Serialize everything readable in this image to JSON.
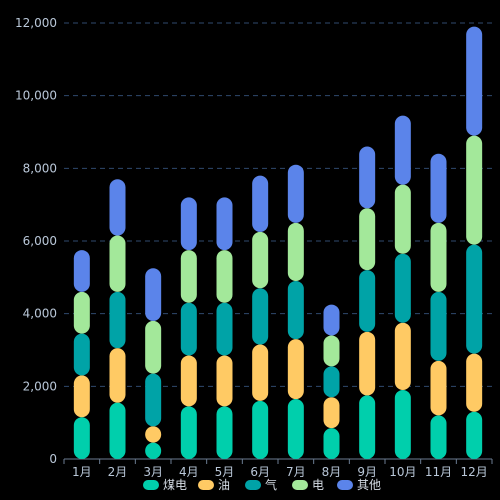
{
  "chart_data": {
    "type": "bar",
    "stacked": true,
    "categories": [
      "1月",
      "2月",
      "3月",
      "4月",
      "5月",
      "6月",
      "7月",
      "8月",
      "9月",
      "10月",
      "11月",
      "12月"
    ],
    "series": [
      {
        "name": "煤电",
        "color": "#00cfac",
        "values": [
          1150,
          1550,
          450,
          1450,
          1450,
          1600,
          1650,
          850,
          1750,
          1900,
          1200,
          1300
        ]
      },
      {
        "name": "油",
        "color": "#ffca64",
        "values": [
          1150,
          1500,
          450,
          1400,
          1400,
          1550,
          1650,
          850,
          1750,
          1850,
          1500,
          1600
        ]
      },
      {
        "name": "气",
        "color": "#00a3a7",
        "values": [
          1150,
          1550,
          1450,
          1450,
          1450,
          1550,
          1600,
          850,
          1700,
          1900,
          1900,
          3000
        ]
      },
      {
        "name": "电",
        "color": "#a3e89a",
        "values": [
          1150,
          1550,
          1450,
          1450,
          1450,
          1550,
          1600,
          850,
          1700,
          1900,
          1900,
          3000
        ]
      },
      {
        "name": "其他",
        "color": "#5b84ea",
        "values": [
          1150,
          1550,
          1450,
          1450,
          1450,
          1550,
          1600,
          850,
          1700,
          1900,
          1900,
          3000
        ]
      }
    ],
    "ylim": [
      0,
      12000
    ],
    "yticks": [
      "0",
      "2,000",
      "4,000",
      "6,000",
      "8,000",
      "10,000",
      "12,000"
    ],
    "grid": true,
    "legend": "bottom-center"
  }
}
